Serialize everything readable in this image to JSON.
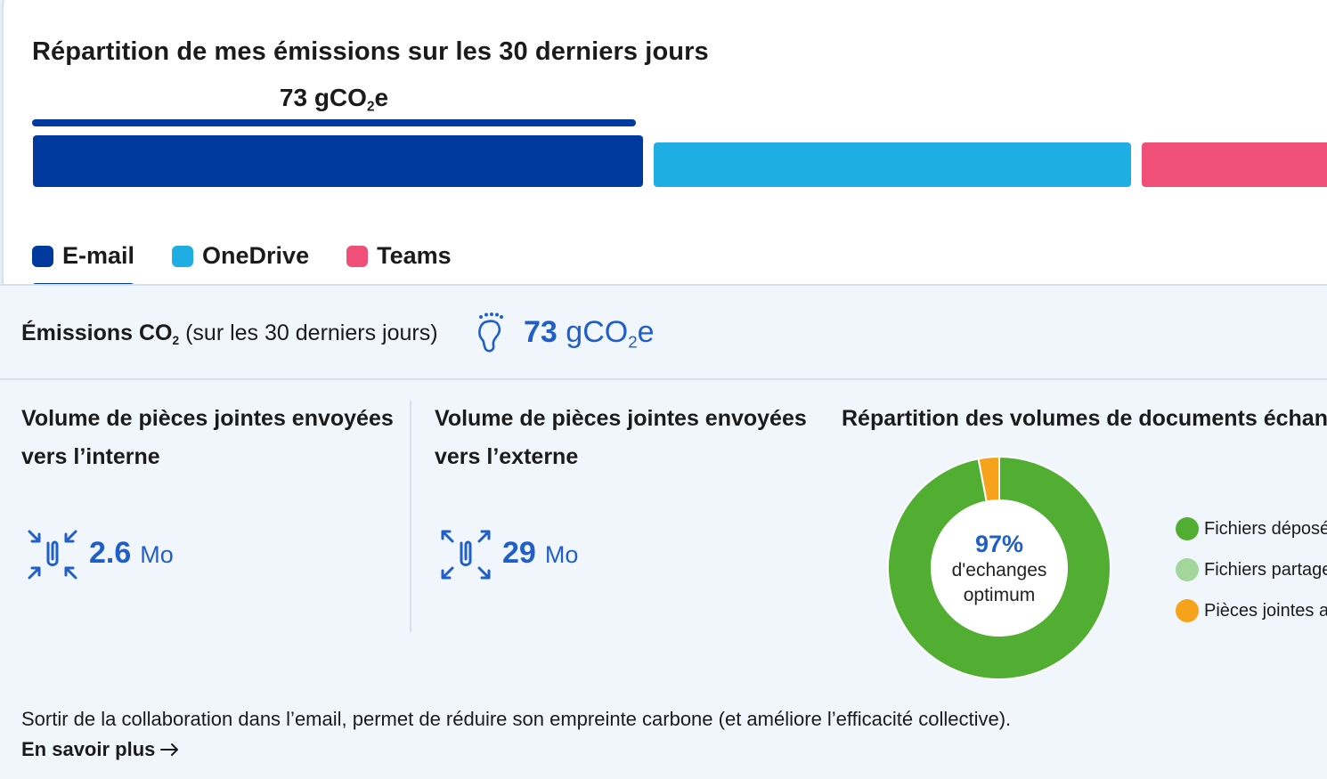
{
  "header": {
    "title": "Répartition de mes émissions sur les 30 derniers jours",
    "selected_value": "73 gCO",
    "selected_value_sub": "2",
    "selected_value_suffix": "e"
  },
  "distribution_bar": {
    "segments": [
      {
        "name": "E-mail",
        "color": "#003a9e",
        "share": 0.46
      },
      {
        "name": "OneDrive",
        "color": "#1eaee3",
        "share": 0.36
      },
      {
        "name": "Teams",
        "color": "#f05078",
        "share": 0.18
      }
    ]
  },
  "legend": {
    "items": [
      {
        "label": "E-mail",
        "color": "#003a9e",
        "selected": true
      },
      {
        "label": "OneDrive",
        "color": "#1eaee3",
        "selected": false
      },
      {
        "label": "Teams",
        "color": "#f05078",
        "selected": false
      }
    ]
  },
  "emissions": {
    "label": "Émissions CO",
    "label_sub": "2",
    "label_suffix": " (sur les 30 derniers jours)",
    "value": "73",
    "unit": "gCO",
    "unit_sub": "2",
    "unit_suffix": "e",
    "icon": "footprint-icon"
  },
  "internal": {
    "title_line1": "Volume de pièces jointes envoyées",
    "title_line2": "vers l’interne",
    "value": "2.6",
    "unit": "Mo",
    "icon": "attachment-inward-icon"
  },
  "external": {
    "title_line1": "Volume de pièces jointes envoyées",
    "title_line2": "vers l’externe",
    "value": "29",
    "unit": "Mo",
    "icon": "attachment-outward-icon"
  },
  "documents": {
    "title": "Répartition des volumes de documents échang",
    "center_pct": "97%",
    "center_line1": "d'echanges",
    "center_line2": "optimum",
    "legend": [
      {
        "label": "Fichiers déposé",
        "color": "#52ae32"
      },
      {
        "label": "Fichiers partage",
        "color": "#a3d69b"
      },
      {
        "label": "Pièces jointes a",
        "color": "#f7a21b"
      }
    ]
  },
  "chart_data": {
    "type": "pie",
    "categories": [
      "Fichiers déposé",
      "Fichiers partage",
      "Pièces jointes a"
    ],
    "values": [
      97,
      0,
      3
    ],
    "colors": [
      "#52ae32",
      "#a3d69b",
      "#f7a21b"
    ],
    "donut": true
  },
  "footer": {
    "text": "Sortir de la collaboration dans l’email, permet de réduire son empreinte carbone (et améliore l’efficacité collective).",
    "link_label": "En savoir plus"
  }
}
